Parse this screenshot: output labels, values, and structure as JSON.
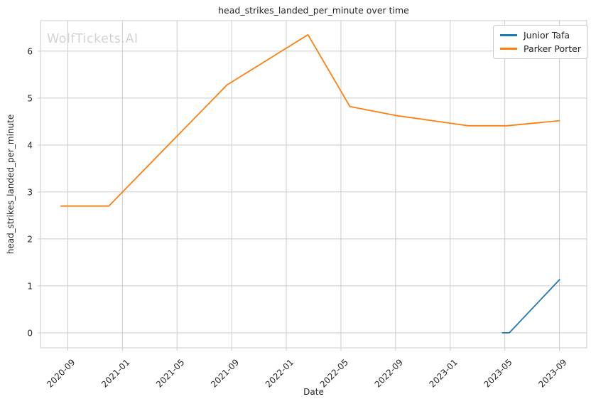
{
  "watermark": {
    "text": "WolfTickets.AI",
    "color": "#d4d4d4"
  },
  "chart_data": {
    "type": "line",
    "title": "head_strikes_landed_per_minute over time",
    "xlabel": "Date",
    "ylabel": "head_strikes_landed_per_minute",
    "x_ticks": [
      "2020-09",
      "2021-01",
      "2021-05",
      "2021-09",
      "2022-01",
      "2022-05",
      "2022-09",
      "2023-01",
      "2023-05",
      "2023-09"
    ],
    "x_tick_rotation_deg": 45,
    "y_ticks": [
      0,
      1,
      2,
      3,
      4,
      5,
      6
    ],
    "x_range": [
      "2020-07",
      "2023-11"
    ],
    "y_range": [
      -0.32,
      6.65
    ],
    "grid": true,
    "grid_color": "#cccccc",
    "axis_edge_color": "#cccccc",
    "text_color": "#262626",
    "legend_position": "upper right",
    "series": [
      {
        "name": "Junior Tafa",
        "color": "#1f77b4",
        "points": [
          [
            "2023-04-25",
            0.0
          ],
          [
            "2023-05-11",
            0.0
          ],
          [
            "2023-09-02",
            1.14
          ]
        ]
      },
      {
        "name": "Parker Porter",
        "color": "#ff7f0e",
        "points": [
          [
            "2020-08-15",
            2.7
          ],
          [
            "2020-12-01",
            2.7
          ],
          [
            "2021-08-21",
            5.28
          ],
          [
            "2022-02-19",
            6.35
          ],
          [
            "2022-05-21",
            4.82
          ],
          [
            "2022-09-01",
            4.63
          ],
          [
            "2023-02-11",
            4.41
          ],
          [
            "2023-05-06",
            4.41
          ],
          [
            "2023-09-02",
            4.52
          ]
        ]
      }
    ]
  }
}
